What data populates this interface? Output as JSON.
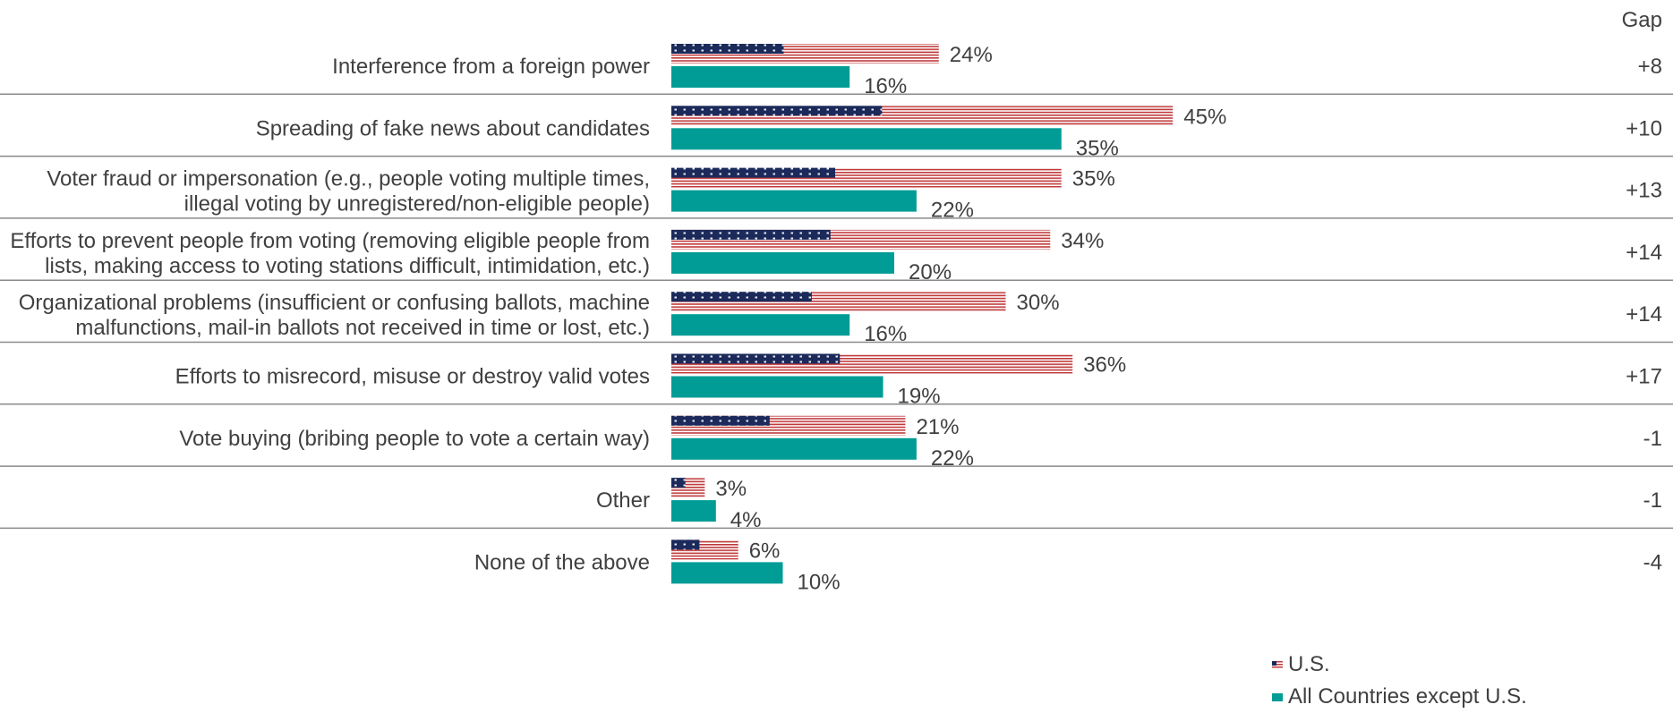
{
  "chart_data": {
    "type": "bar",
    "orientation": "horizontal",
    "value_suffix": "%",
    "gap_header": "Gap",
    "categories": [
      [
        "Interference from a foreign power"
      ],
      [
        "Spreading of fake news about candidates"
      ],
      [
        "Voter fraud or impersonation (e.g., people voting multiple times,",
        "illegal voting by unregistered/non-eligible people)"
      ],
      [
        "Efforts to prevent people from voting (removing eligible people from",
        "lists, making access to voting stations difficult, intimidation, etc.)"
      ],
      [
        "Organizational problems (insufficient or confusing ballots, machine",
        "malfunctions, mail-in ballots not received in time or lost, etc.)"
      ],
      [
        "Efforts to misrecord, misuse or destroy valid votes"
      ],
      [
        "Vote buying (bribing people to vote a certain way)"
      ],
      [
        "Other"
      ],
      [
        "None of the above"
      ]
    ],
    "series": [
      {
        "name": "U.S.",
        "color": "#c0393b",
        "canton_color": "#1b2a5a",
        "pattern": "us-flag",
        "values": [
          24,
          45,
          35,
          34,
          30,
          36,
          21,
          3,
          6
        ]
      },
      {
        "name": "All Countries except U.S.",
        "color": "#009c95",
        "values": [
          16,
          35,
          22,
          20,
          16,
          19,
          22,
          4,
          10
        ]
      }
    ],
    "gap": [
      "+8",
      "+10",
      "+13",
      "+14",
      "+14",
      "+17",
      "-1",
      "-1",
      "-4"
    ],
    "legend_position": "bottom-right",
    "grid": false
  }
}
